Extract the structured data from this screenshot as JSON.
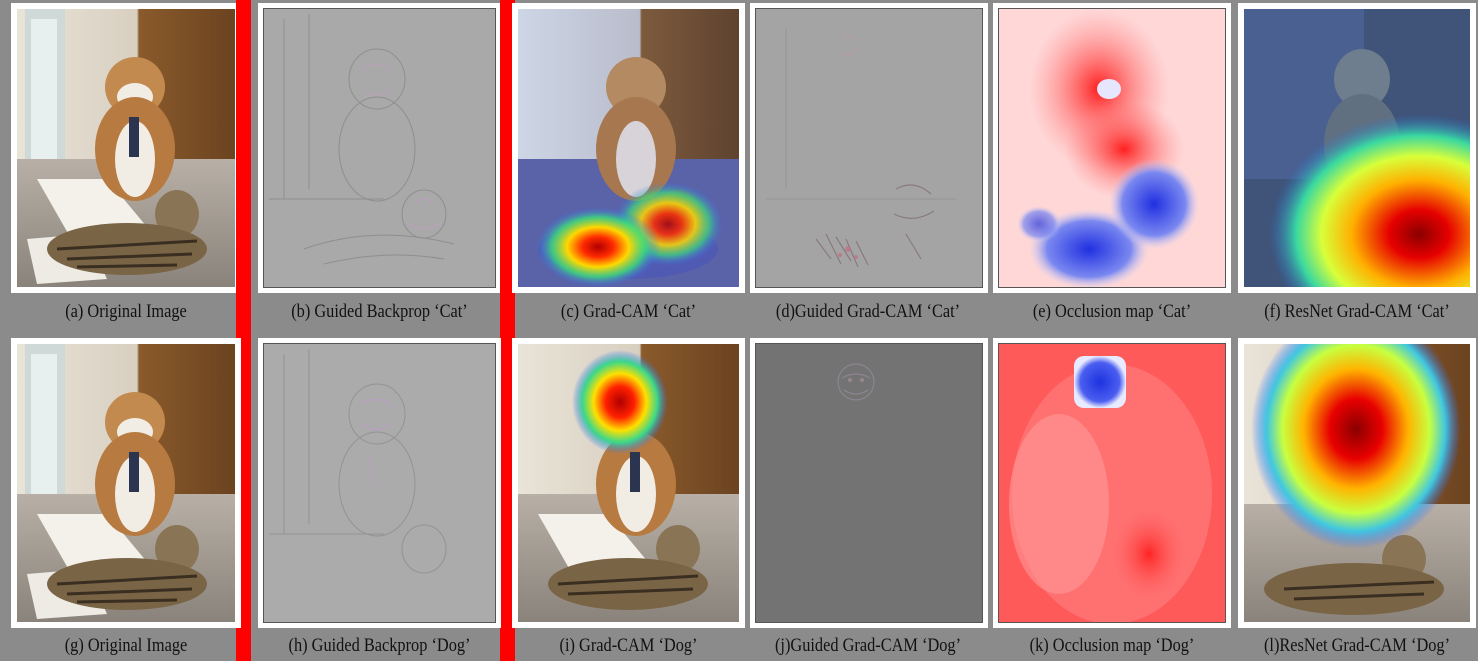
{
  "figure": {
    "rows": [
      {
        "panels": [
          {
            "id": "a",
            "caption": "(a) Original Image",
            "kind": "photo"
          },
          {
            "id": "b",
            "caption": "(b) Guided Backprop ‘Cat’",
            "kind": "guided-backprop"
          },
          {
            "id": "c",
            "caption": "(c) Grad-CAM ‘Cat’",
            "kind": "gradcam-cat"
          },
          {
            "id": "d",
            "caption": "(d)Guided Grad-CAM ‘Cat’",
            "kind": "guided-gradcam-cat"
          },
          {
            "id": "e",
            "caption": "(e) Occlusion map ‘Cat’",
            "kind": "occlusion-cat"
          },
          {
            "id": "f",
            "caption": "(f) ResNet Grad-CAM ‘Cat’",
            "kind": "resnet-gradcam-cat"
          }
        ]
      },
      {
        "panels": [
          {
            "id": "g",
            "caption": "(g) Original Image",
            "kind": "photo"
          },
          {
            "id": "h",
            "caption": "(h) Guided Backprop ‘Dog’",
            "kind": "guided-backprop"
          },
          {
            "id": "i",
            "caption": "(i) Grad-CAM ‘Dog’",
            "kind": "gradcam-dog"
          },
          {
            "id": "j",
            "caption": "(j)Guided Grad-CAM ‘Dog’",
            "kind": "guided-gradcam-dog"
          },
          {
            "id": "k",
            "caption": "(k) Occlusion map ‘Dog’",
            "kind": "occlusion-dog"
          },
          {
            "id": "l",
            "caption": "(l)ResNet Grad-CAM ‘Dog’",
            "kind": "resnet-gradcam-dog"
          }
        ]
      }
    ],
    "colors": {
      "separator": "#ff0000",
      "heat_hot": "#c00000",
      "heat_warm": "#ffdd00",
      "heat_cool": "#3366ff",
      "occlusion_pos": "#ff3b3b",
      "occlusion_neg": "#2a3fe0",
      "guided_bg": "#a8a8a8"
    }
  }
}
